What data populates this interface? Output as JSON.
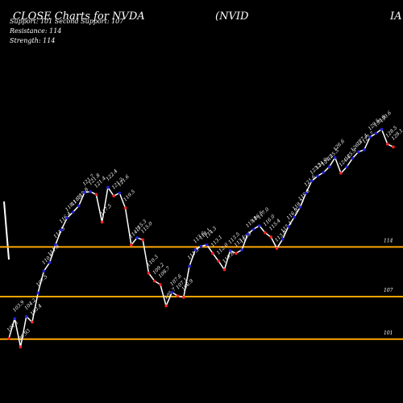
{
  "header": {
    "title_left": "CLOSE Charts for NVDA",
    "title_mid": "(NVID",
    "title_right": "IA C",
    "support_line": "Support: 101    Second Support: 107",
    "resistance_line": "Resistance: 114",
    "strength_line": "Strength: 114"
  },
  "colors": {
    "background": "#000000",
    "price_line": "#ffffff",
    "up_marker": "#2222dd",
    "down_marker": "#ff2222",
    "level_line": "#ffa500"
  },
  "chart_data": {
    "type": "line",
    "values": [
      101.1,
      103.9,
      99.9,
      104.2,
      103.4,
      107.5,
      110.6,
      111.8,
      114.3,
      116.4,
      118.1,
      118.9,
      119.8,
      121.7,
      121.8,
      121.4,
      117.5,
      122.4,
      121.2,
      121.6,
      119.5,
      114.3,
      115.3,
      115.0,
      110.3,
      109.2,
      108.7,
      105.7,
      107.6,
      107.1,
      106.9,
      111.3,
      113.6,
      114.1,
      114.3,
      113.1,
      112.0,
      110.8,
      113.5,
      113.1,
      113.6,
      115.8,
      116.5,
      117.0,
      116.0,
      115.4,
      113.8,
      115.1,
      116.9,
      118.2,
      119.6,
      121.6,
      123.3,
      124.0,
      124.5,
      125.3,
      126.6,
      124.4,
      125.3,
      126.5,
      127.4,
      127.7,
      129.5,
      130.0,
      130.6,
      128.5,
      128.1
    ],
    "directions": [
      "d",
      "u",
      "d",
      "u",
      "d",
      "u",
      "u",
      "u",
      "u",
      "u",
      "u",
      "u",
      "u",
      "u",
      "u",
      "d",
      "d",
      "u",
      "d",
      "u",
      "d",
      "d",
      "u",
      "d",
      "d",
      "d",
      "d",
      "d",
      "u",
      "d",
      "d",
      "u",
      "u",
      "u",
      "u",
      "d",
      "d",
      "d",
      "u",
      "d",
      "u",
      "u",
      "u",
      "u",
      "d",
      "d",
      "d",
      "u",
      "u",
      "u",
      "u",
      "u",
      "u",
      "u",
      "u",
      "u",
      "u",
      "d",
      "u",
      "u",
      "u",
      "u",
      "u",
      "u",
      "u",
      "d",
      "d"
    ],
    "labels": [
      "101.1",
      "103.9",
      "99.93",
      "104.2",
      "103.4",
      "107.5",
      "110.6",
      "111.8",
      "114.3",
      "116.4",
      "118.1",
      "118.9",
      "119.8",
      "121.7",
      "121.8",
      "121.4",
      "117.5",
      "122.4",
      "121.2",
      "121.6",
      "119.5",
      "114.3",
      "115.3",
      "115.0",
      "110.3",
      "109.2",
      "108.7",
      "105.7",
      "107.6",
      "107.1",
      "106.9",
      "111.3",
      "113.6",
      "114.1",
      "114.3",
      "113.1",
      "112.0",
      "110.8",
      "113.5",
      "113.1",
      "113.6",
      "115.8",
      "116.5",
      "117.0",
      "116.0",
      "115.4",
      "113.8",
      "115.1",
      "116.9",
      "118.2",
      "119.6",
      "121.6",
      "123.3",
      "124.0",
      "124.5",
      "125.3",
      "126.6",
      "124.4",
      "125.3",
      "126.5",
      "127.4",
      "127.7",
      "129.5",
      "130.0",
      "130.6",
      "128.5",
      "128.1"
    ],
    "levels": [
      {
        "value": 114,
        "label": "114"
      },
      {
        "value": 107,
        "label": "107"
      },
      {
        "value": 101,
        "label": "101"
      }
    ],
    "ylim": [
      92,
      142
    ]
  }
}
